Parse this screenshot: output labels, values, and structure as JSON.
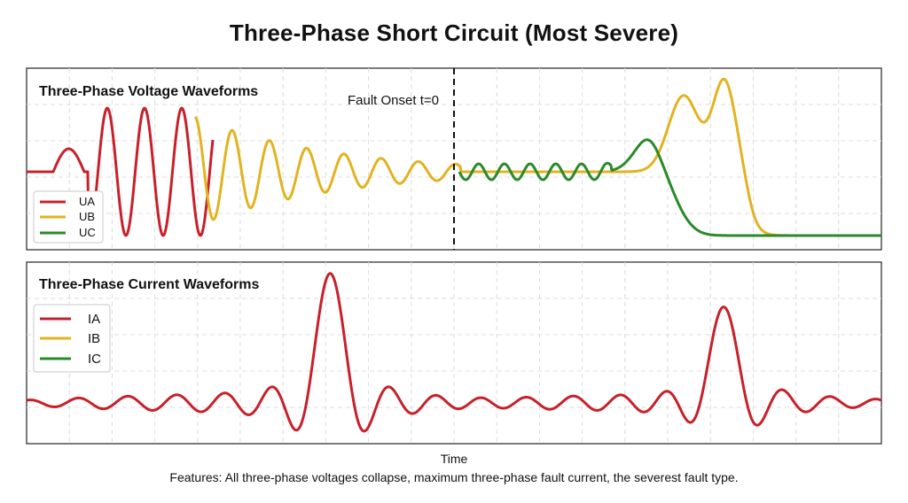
{
  "title": "Three-Phase Short Circuit (Most Severe)",
  "colors": {
    "phase_a": "#c8202a",
    "phase_b": "#e2b320",
    "phase_c": "#2a8a2a",
    "grid": "#dcdcdc",
    "frame": "#333333"
  },
  "chart_data": [
    {
      "type": "line",
      "title": "Three-Phase Voltage Waveforms",
      "xlabel": "",
      "ylabel": "",
      "grid": true,
      "legend": "bottom-left",
      "annotation": {
        "text": "Fault Onset t=0",
        "x": 0
      },
      "x_range": [
        -1.0,
        1.0
      ],
      "series": [
        {
          "name": "UA",
          "color": "#c8202a"
        },
        {
          "name": "UB",
          "color": "#e2b320"
        },
        {
          "name": "UC",
          "color": "#2a8a2a"
        }
      ]
    },
    {
      "type": "line",
      "title": "Three-Phase Current Waveforms",
      "xlabel": "Time",
      "ylabel": "",
      "grid": true,
      "legend": "top-left",
      "x_range": [
        -1.0,
        1.0
      ],
      "peaks": [
        {
          "series": "IA",
          "x": -0.29,
          "relative_amplitude": 1.0
        },
        {
          "series": "IA",
          "x": 0.63,
          "relative_amplitude": 0.73
        }
      ],
      "series": [
        {
          "name": "IA",
          "color": "#c8202a"
        },
        {
          "name": "IB",
          "color": "#e2b320"
        },
        {
          "name": "IC",
          "color": "#2a8a2a"
        }
      ]
    }
  ],
  "xlabel": "Time",
  "features": "Features: All three-phase voltages collapse, maximum three-phase fault current, the severest fault type."
}
